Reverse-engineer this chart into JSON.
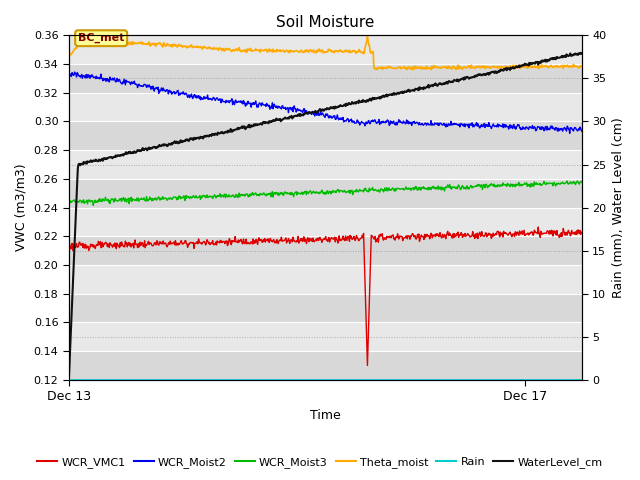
{
  "title": "Soil Moisture",
  "xlabel": "Time",
  "ylabel_left": "VWC (m3/m3)",
  "ylabel_right": "Rain (mm), Water Level (cm)",
  "xlim": [
    0,
    4.5
  ],
  "ylim_left": [
    0.12,
    0.36
  ],
  "ylim_right": [
    0,
    40
  ],
  "xtick_positions": [
    0.0,
    4.0
  ],
  "xtick_labels": [
    "Dec 13",
    "Dec 17"
  ],
  "yticks_left": [
    0.12,
    0.14,
    0.16,
    0.18,
    0.2,
    0.22,
    0.24,
    0.26,
    0.28,
    0.3,
    0.32,
    0.34,
    0.36
  ],
  "yticks_right": [
    0,
    5,
    10,
    15,
    20,
    25,
    30,
    35,
    40
  ],
  "bg_color_light": "#e8e8e8",
  "bg_color_dark": "#d4d4d4",
  "spike_x": 2.62,
  "annotation_label": "BC_met",
  "series_colors": {
    "WCR_VMC1": "#dd0000",
    "WCR_Moist2": "#0000ee",
    "WCR_Moist3": "#00bb00",
    "Theta_moist": "#ffaa00",
    "Rain": "#00cccc",
    "WaterLevel_cm": "#111111"
  },
  "series_lw": {
    "WCR_VMC1": 1.0,
    "WCR_Moist2": 1.0,
    "WCR_Moist3": 1.0,
    "Theta_moist": 1.2,
    "Rain": 1.2,
    "WaterLevel_cm": 1.5
  }
}
